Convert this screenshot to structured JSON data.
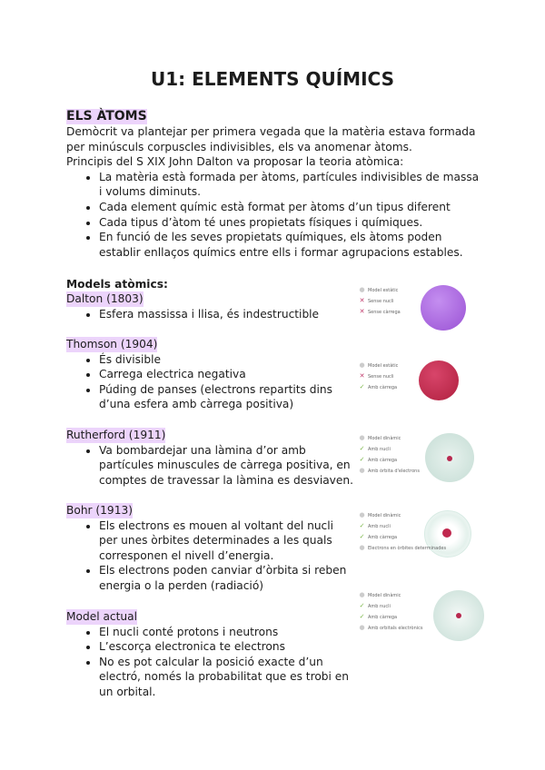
{
  "title": "U1: ELEMENTS QUÍMICS",
  "intro": {
    "heading": "ELS ÀTOMS",
    "paragraphs": [
      "Demòcrit va plantejar per primera vegada que la matèria estava formada per minúsculs corpuscles indivisibles, els va anomenar àtoms.",
      "Principis del S XIX John Dalton va proposar la teoria atòmica:"
    ],
    "bullets": [
      "La matèria està formada per àtoms, partícules indivisibles de massa i volums diminuts.",
      "Cada element químic està format per àtoms d’un tipus diferent",
      "Cada tipus d’àtom té unes propietats físiques i químiques.",
      "En funció de les seves propietats químiques, els àtoms poden establir enllaços químics entre ells i formar agrupacions estables."
    ]
  },
  "models_heading": "Models atòmics:",
  "models": [
    {
      "name": "Dalton (1803)",
      "bullets": [
        "Esfera massissa i llisa, és indestructible"
      ],
      "figure_legend": [
        {
          "mark": "dot",
          "text": "Model estàtic"
        },
        {
          "mark": "x",
          "text": "Sense nucli"
        },
        {
          "mark": "x",
          "text": "Sense càrrega"
        }
      ]
    },
    {
      "name": "Thomson (1904)",
      "bullets": [
        "És divisible",
        "Carrega electrica negativa",
        "Púding de panses (electrons repartits dins d’una esfera amb càrrega positiva)"
      ],
      "figure_legend": [
        {
          "mark": "dot",
          "text": "Model estàtic"
        },
        {
          "mark": "x",
          "text": "Sense nucli"
        },
        {
          "mark": "ok",
          "text": "Amb càrrega"
        }
      ]
    },
    {
      "name": "Rutherford (1911)",
      "bullets": [
        "Va bombardejar una làmina d’or amb partícules minuscules de càrrega positiva, en comptes de travessar la làmina es desviaven."
      ],
      "figure_legend": [
        {
          "mark": "dot",
          "text": "Model dinàmic"
        },
        {
          "mark": "ok",
          "text": "Amb nucli"
        },
        {
          "mark": "ok",
          "text": "Amb càrrega"
        },
        {
          "mark": "dot",
          "text": "Amb òrbita d'electrons"
        }
      ]
    },
    {
      "name": "Bohr (1913)",
      "bullets": [
        "Els electrons es mouen al voltant del nucli per unes òrbites determinades a les quals corresponen el nivell d’energia.",
        "Els electrons poden canviar d’òrbita si reben energia o la perden (radiació)"
      ],
      "figure_legend": [
        {
          "mark": "dot",
          "text": "Model dinàmic"
        },
        {
          "mark": "ok",
          "text": "Amb nucli"
        },
        {
          "mark": "ok",
          "text": "Amb càrrega"
        },
        {
          "mark": "dot",
          "text": "Electrons en òrbites determinades"
        }
      ]
    },
    {
      "name": "Model actual",
      "bullets": [
        "El nucli conté protons i neutrons",
        "L’escorça electronica te electrons",
        "No es pot calcular la posició exacte d’un electró, només la probabilitat que es trobi en un orbital."
      ],
      "figure_legend": [
        {
          "mark": "dot",
          "text": "Model dinàmic"
        },
        {
          "mark": "ok",
          "text": "Amb nucli"
        },
        {
          "mark": "ok",
          "text": "Amb càrrega"
        },
        {
          "mark": "dot",
          "text": "Amb orbitals electrònics"
        }
      ]
    }
  ],
  "colors": {
    "highlight": "#ecd4fb",
    "dalton": "#a35ed6",
    "thomson": "#c0284e",
    "cloud": "#cfe6df"
  }
}
